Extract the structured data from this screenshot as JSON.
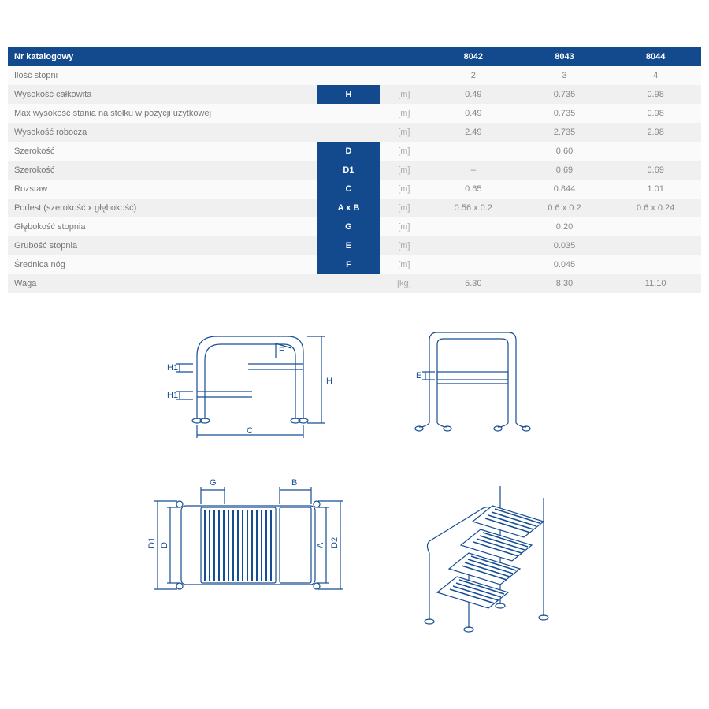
{
  "table": {
    "header_bg": "#134a8e",
    "header_fg": "#ffffff",
    "row_bg_odd": "#fafafa",
    "row_bg_even": "#f0f0f0",
    "text_color": "#777777",
    "unit_color": "#aaaaaa",
    "header": {
      "param_label": "Nr katalogowy",
      "cols": [
        "8042",
        "8043",
        "8044"
      ]
    },
    "rows": [
      {
        "label": "Ilość stopni",
        "symbol": "",
        "unit": "",
        "values": [
          "2",
          "3",
          "4"
        ]
      },
      {
        "label": "Wysokość całkowita",
        "symbol": "H",
        "unit": "[m]",
        "values": [
          "0.49",
          "0.735",
          "0.98"
        ]
      },
      {
        "label": "Max wysokość stania na stołku w pozycji użytkowej",
        "symbol": "",
        "unit": "[m]",
        "values": [
          "0.49",
          "0.735",
          "0.98"
        ]
      },
      {
        "label": "Wysokość robocza",
        "symbol": "",
        "unit": "[m]",
        "values": [
          "2.49",
          "2.735",
          "2.98"
        ]
      },
      {
        "label": "Szerokość",
        "symbol": "D",
        "unit": "[m]",
        "span_value": "0.60"
      },
      {
        "label": "Szerokość",
        "symbol": "D1",
        "unit": "[m]",
        "values": [
          "–",
          "0.69",
          "0.69"
        ]
      },
      {
        "label": "Rozstaw",
        "symbol": "C",
        "unit": "[m]",
        "values": [
          "0.65",
          "0.844",
          "1.01"
        ]
      },
      {
        "label": "Podest (szerokość x głębokość)",
        "symbol": "A x B",
        "unit": "[m]",
        "values": [
          "0.56 x 0.2",
          "0.6 x 0.2",
          "0.6 x 0.24"
        ]
      },
      {
        "label": "Głębokość stopnia",
        "symbol": "G",
        "unit": "[m]",
        "span_value": "0.20"
      },
      {
        "label": "Grubość stopnia",
        "symbol": "E",
        "unit": "[m]",
        "span_value": "0.035"
      },
      {
        "label": "Średnica nóg",
        "symbol": "F",
        "unit": "[m]",
        "span_value": "0.045"
      },
      {
        "label": "Waga",
        "symbol": "",
        "unit": "[kg]",
        "values": [
          "5.30",
          "8.30",
          "11.10"
        ]
      }
    ]
  },
  "diagrams": {
    "stroke": "#164e94",
    "stroke_width": 1.2,
    "dim_labels": {
      "H": "H",
      "H1a": "H1",
      "H1b": "H1",
      "F": "F",
      "C": "C",
      "G": "G",
      "B": "B",
      "D": "D",
      "D1": "D1",
      "D2": "D2",
      "A": "A",
      "E": "E"
    }
  }
}
